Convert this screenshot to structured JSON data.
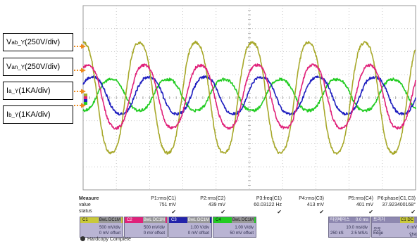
{
  "labels": [
    {
      "main": "V",
      "sub": "ab_Y",
      "rest": "(250V/div)"
    },
    {
      "main": "V",
      "sub": "an_Y",
      "rest": "(250V/div)"
    },
    {
      "main": "I",
      "sub": "a_Y",
      "rest": " (1KA/div)"
    },
    {
      "main": "I",
      "sub": "b_Y",
      "rest": " (1KA/div)"
    }
  ],
  "chart_data": {
    "type": "line",
    "xlabel": "",
    "ylabel": "",
    "grid": true,
    "xlim": [
      0,
      100
    ],
    "ylim": [
      -4,
      4
    ],
    "x_divisions": 10,
    "y_divisions": 8,
    "periods_shown": 5.9,
    "series": [
      {
        "name": "C1",
        "color": "#a7a82a",
        "amplitude_div": 2.55,
        "offset_div": 0.0,
        "phase_deg": 90
      },
      {
        "name": "C2",
        "color": "#e0217a",
        "amplitude_div": 1.45,
        "offset_div": 0.05,
        "phase_deg": 60
      },
      {
        "name": "C3",
        "color": "#1f1fbf",
        "amplitude_div": 0.85,
        "offset_div": 0.1,
        "phase_deg": 30
      },
      {
        "name": "C4",
        "color": "#22cc22",
        "amplitude_div": 0.72,
        "offset_div": 0.12,
        "phase_deg": -90
      }
    ]
  },
  "measure": {
    "title": "Measure",
    "value_label": "value",
    "status_label": "status",
    "check": "✔",
    "params": [
      {
        "name": "P1:rms(C1)",
        "value": "751 mV"
      },
      {
        "name": "P2:rms(C2)",
        "value": "439 mV"
      },
      {
        "name": "P3:freq(C1)",
        "value": "60.03122 Hz"
      },
      {
        "name": "P4:rms(C3)",
        "value": "413 mV"
      },
      {
        "name": "P5:rms(C4)",
        "value": "401 mV"
      },
      {
        "name": "P6:phase(C1,C3)",
        "value": "37.923400168°"
      }
    ]
  },
  "channels": [
    {
      "name": "C1",
      "mode": "BwL DC1M",
      "color": "#c9c93a",
      "scale": "500 mV/div",
      "offset": "0 mV offset"
    },
    {
      "name": "C2",
      "mode": "BwL DC1M",
      "color": "#e0217a",
      "scale": "500 mV/div",
      "offset": "0 mV offset"
    },
    {
      "name": "C3",
      "mode": "BwL DC1M",
      "color": "#2222aa",
      "scale": "1.00 V/div",
      "offset": "0 mV offset"
    },
    {
      "name": "C4",
      "mode": "BwL DC1M",
      "color": "#22cc22",
      "scale": "1.00 V/div",
      "offset": "50 mV offset"
    }
  ],
  "timebase": {
    "title": "타임베이스",
    "delay": "0.0 ms",
    "div": "10.0 ms/div",
    "samples": "250 kS",
    "rate": "2.5 MS/s"
  },
  "trigger": {
    "title": "트리거",
    "ch": "C1 DC",
    "mode": "오토",
    "level": "0 mV",
    "type": "Edge",
    "slope": "양의"
  },
  "hardcopy": "Hardcopy Complete"
}
